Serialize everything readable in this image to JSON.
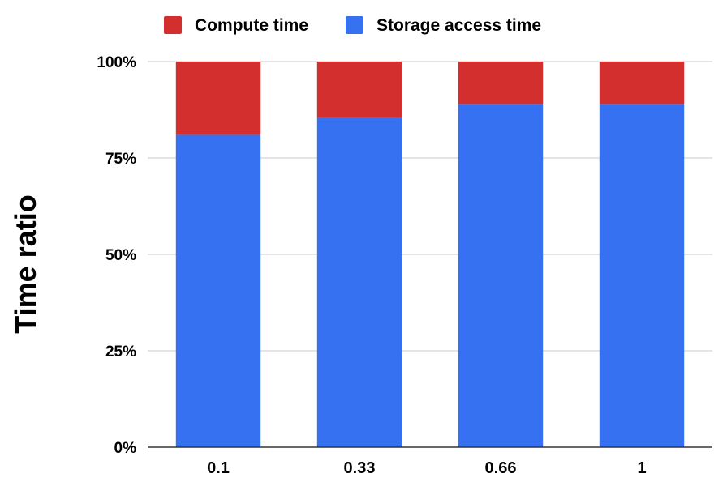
{
  "chart_data": {
    "type": "bar",
    "stacked": true,
    "categories": [
      "0.1",
      "0.33",
      "0.66",
      "1"
    ],
    "series": [
      {
        "name": "Storage access time",
        "values": [
          81,
          85.5,
          89,
          89
        ],
        "color": "#3571f0"
      },
      {
        "name": "Compute time",
        "values": [
          19,
          14.5,
          11,
          11
        ],
        "color": "#d32f2f"
      }
    ],
    "legend": {
      "position": "top",
      "order": [
        "Compute time",
        "Storage access time"
      ]
    },
    "xlabel": "",
    "ylabel": "Time ratio",
    "ylim": [
      0,
      100
    ],
    "yticks": [
      "0%",
      "25%",
      "50%",
      "75%",
      "100%"
    ],
    "grid": true
  }
}
